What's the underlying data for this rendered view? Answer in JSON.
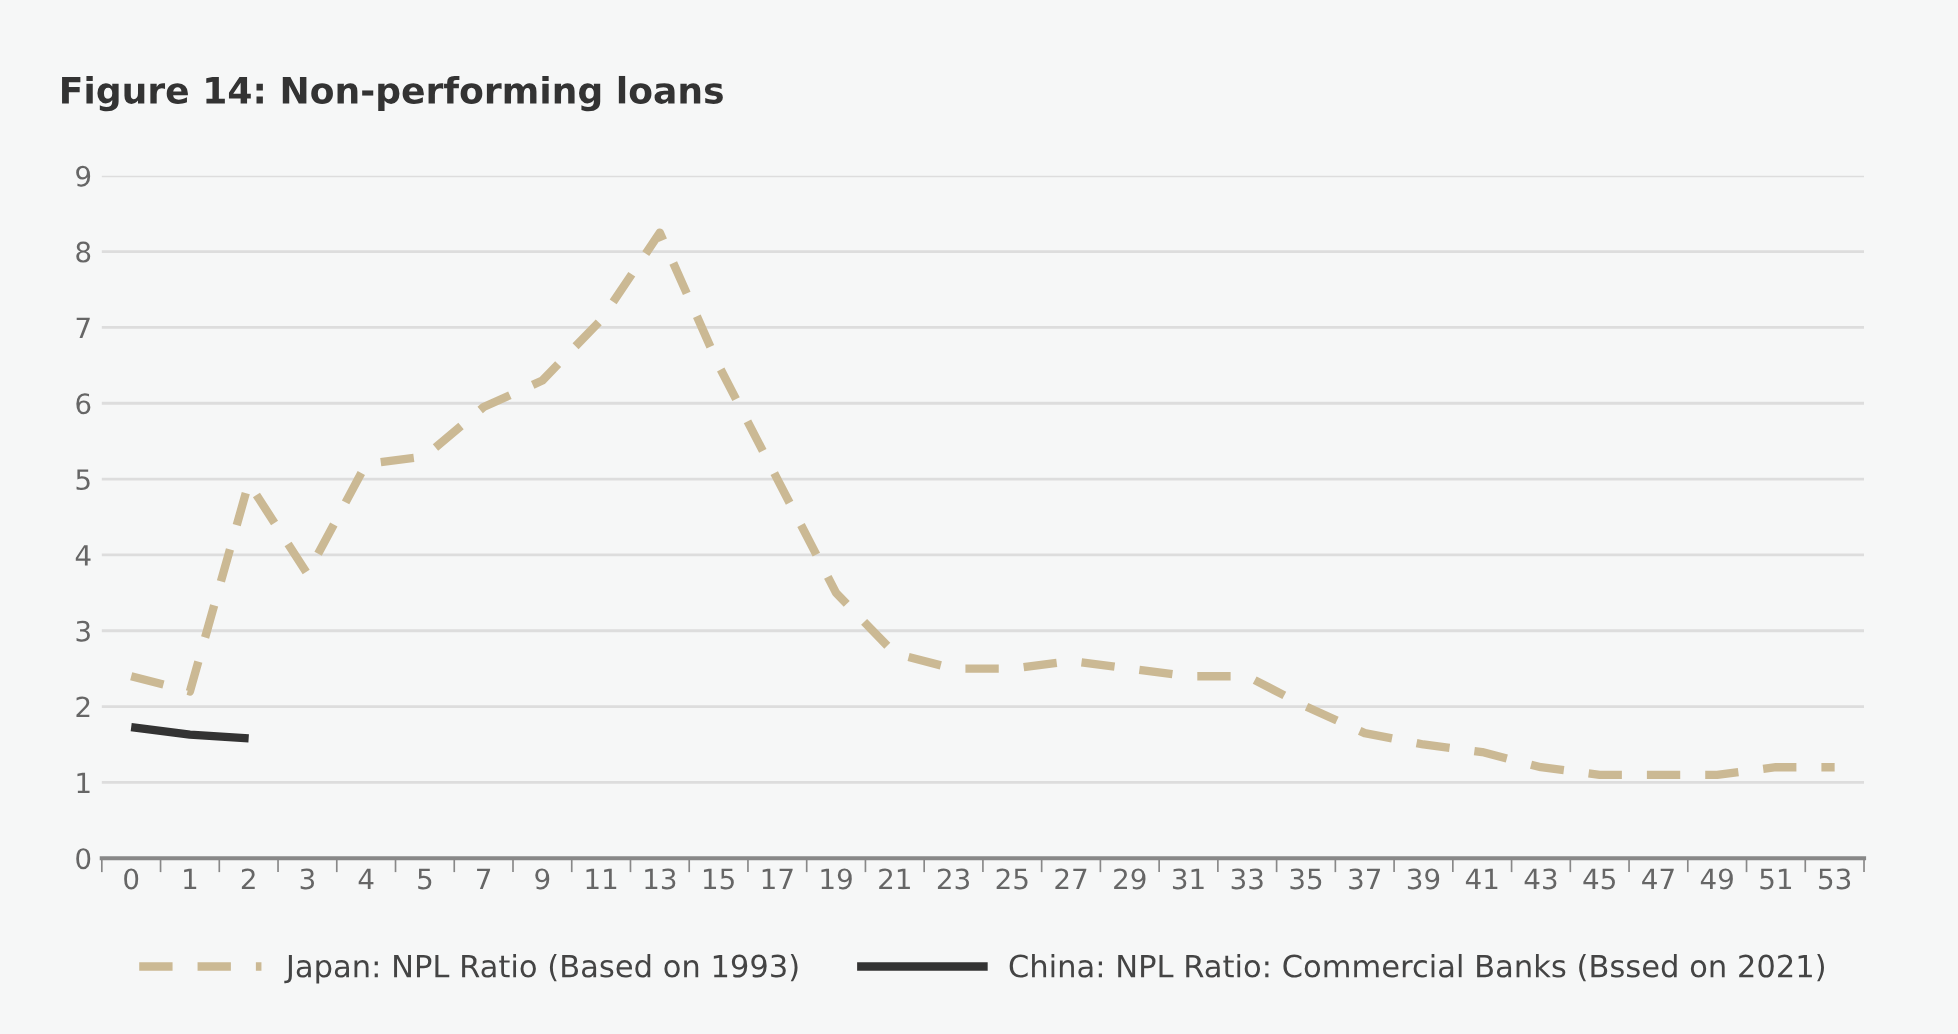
{
  "chart_data": {
    "type": "line",
    "title": "Figure 14: Non-performing loans",
    "categories": [
      "0",
      "1",
      "2",
      "3",
      "4",
      "5",
      "7",
      "9",
      "11",
      "13",
      "15",
      "17",
      "19",
      "21",
      "23",
      "25",
      "27",
      "29",
      "31",
      "33",
      "35",
      "37",
      "39",
      "41",
      "43",
      "45",
      "47",
      "49",
      "51",
      "53"
    ],
    "series": [
      {
        "name": "Japan: NPL Ratio (Based on 1993)",
        "color": "#cbb994",
        "line_style": "dashed",
        "values": [
          2.4,
          2.2,
          4.95,
          3.75,
          5.2,
          5.3,
          5.95,
          6.3,
          7.1,
          8.25,
          6.5,
          5.0,
          3.5,
          2.7,
          2.5,
          2.5,
          2.6,
          2.5,
          2.4,
          2.4,
          2.0,
          1.65,
          1.5,
          1.4,
          1.2,
          1.1,
          1.1,
          1.1,
          1.2,
          1.2
        ]
      },
      {
        "name": "China: NPL Ratio: Commercial Banks (Bssed on 2021)",
        "color": "#333333",
        "line_style": "solid",
        "values": [
          1.73,
          1.63,
          1.58,
          null,
          null,
          null,
          null,
          null,
          null,
          null,
          null,
          null,
          null,
          null,
          null,
          null,
          null,
          null,
          null,
          null,
          null,
          null,
          null,
          null,
          null,
          null,
          null,
          null,
          null,
          null
        ]
      }
    ],
    "ylim": [
      0,
      9
    ],
    "yticks": [
      0,
      1,
      2,
      3,
      4,
      5,
      6,
      7,
      8,
      9
    ],
    "grid": "y",
    "legend": "bottom"
  }
}
